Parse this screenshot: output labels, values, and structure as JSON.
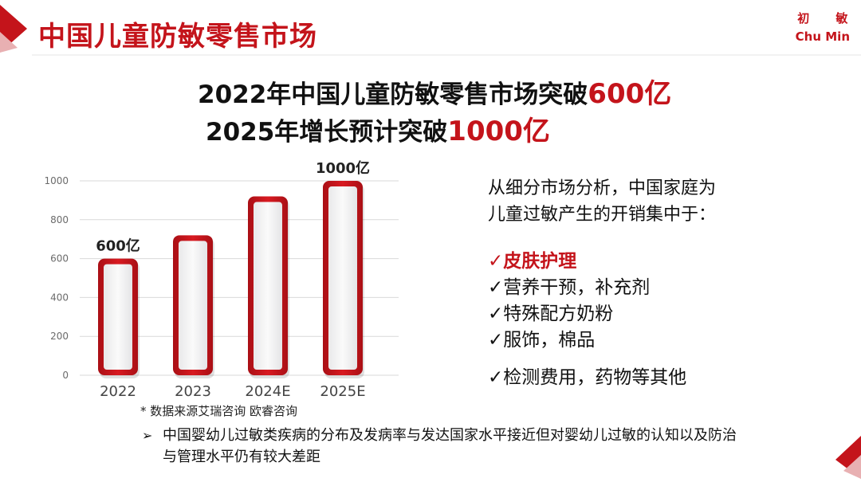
{
  "header": {
    "title": "中国儿童防敏零售市场",
    "brand_cn": "初 敏",
    "brand_en": "Chu Min",
    "accent_color": "#c4141b"
  },
  "headline": {
    "line1_prefix": "2022年中国儿童防敏零售市场突破",
    "line1_highlight": "600亿",
    "line2_prefix": "2025年增长预计突破",
    "line2_highlight": "1000亿"
  },
  "chart_data": {
    "type": "bar",
    "categories": [
      "2022",
      "2023",
      "2024E",
      "2025E"
    ],
    "values": [
      600,
      720,
      920,
      1000
    ],
    "ylim": [
      0,
      1000
    ],
    "yticks": [
      0,
      200,
      400,
      600,
      800,
      1000
    ],
    "grid": true,
    "data_labels": [
      "600亿",
      "",
      "",
      "1000亿"
    ],
    "bar_color": "#c4141b"
  },
  "analysis": {
    "intro_line1": "从细分市场分析，中国家庭为",
    "intro_line2": "儿童过敏产生的开销集中于：",
    "items": [
      {
        "mark": "✓",
        "label": "皮肤护理"
      },
      {
        "mark": "✓",
        "label": "营养干预，补充剂"
      },
      {
        "mark": "✓",
        "label": "特殊配方奶粉"
      },
      {
        "mark": "✓",
        "label": "服饰，棉品"
      },
      {
        "mark": "✓",
        "label": "检测费用，药物等其他"
      }
    ]
  },
  "footer": {
    "source": "* 数据来源艾瑞咨询  欧睿咨询",
    "note": "中国婴幼儿过敏类疾病的分布及发病率与发达国家水平接近但对婴幼儿过敏的认知以及防治与管理水平仍有较大差距"
  }
}
